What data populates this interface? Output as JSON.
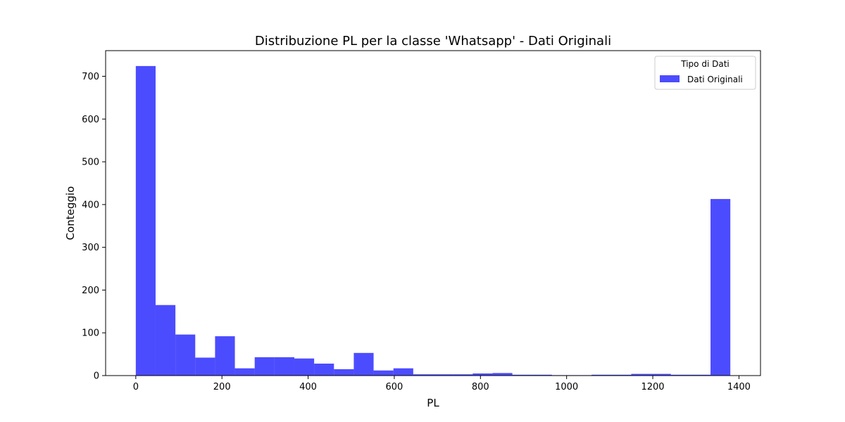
{
  "chart_data": {
    "type": "bar",
    "title": "Distribuzione PL per la classe 'Whatsapp' - Dati Originali",
    "xlabel": "PL",
    "ylabel": "Conteggio",
    "xlim": [
      -70,
      1450
    ],
    "ylim": [
      0,
      760
    ],
    "xticks": [
      0,
      200,
      400,
      600,
      800,
      1000,
      1200,
      1400
    ],
    "yticks": [
      0,
      100,
      200,
      300,
      400,
      500,
      600,
      700
    ],
    "grid": false,
    "bar_color": "#0000ff",
    "bar_opacity": 0.7,
    "legend": {
      "title": "Tipo di Dati",
      "position": "top-right",
      "entries": [
        "Dati Originali"
      ]
    },
    "series": [
      {
        "name": "Dati Originali",
        "bins": [
          {
            "x0": 0,
            "x1": 46,
            "count": 724
          },
          {
            "x0": 46,
            "x1": 92,
            "count": 165
          },
          {
            "x0": 92,
            "x1": 138,
            "count": 96
          },
          {
            "x0": 138,
            "x1": 184,
            "count": 42
          },
          {
            "x0": 184,
            "x1": 230,
            "count": 92
          },
          {
            "x0": 230,
            "x1": 276,
            "count": 17
          },
          {
            "x0": 276,
            "x1": 322,
            "count": 43
          },
          {
            "x0": 322,
            "x1": 368,
            "count": 43
          },
          {
            "x0": 368,
            "x1": 414,
            "count": 40
          },
          {
            "x0": 414,
            "x1": 460,
            "count": 28
          },
          {
            "x0": 460,
            "x1": 506,
            "count": 15
          },
          {
            "x0": 506,
            "x1": 552,
            "count": 53
          },
          {
            "x0": 552,
            "x1": 598,
            "count": 12
          },
          {
            "x0": 598,
            "x1": 644,
            "count": 17
          },
          {
            "x0": 644,
            "x1": 690,
            "count": 3
          },
          {
            "x0": 690,
            "x1": 736,
            "count": 3
          },
          {
            "x0": 736,
            "x1": 782,
            "count": 3
          },
          {
            "x0": 782,
            "x1": 828,
            "count": 5
          },
          {
            "x0": 828,
            "x1": 874,
            "count": 6
          },
          {
            "x0": 874,
            "x1": 920,
            "count": 2
          },
          {
            "x0": 920,
            "x1": 966,
            "count": 2
          },
          {
            "x0": 966,
            "x1": 1012,
            "count": 1
          },
          {
            "x0": 1012,
            "x1": 1058,
            "count": 1
          },
          {
            "x0": 1058,
            "x1": 1104,
            "count": 2
          },
          {
            "x0": 1104,
            "x1": 1150,
            "count": 2
          },
          {
            "x0": 1150,
            "x1": 1196,
            "count": 4
          },
          {
            "x0": 1196,
            "x1": 1242,
            "count": 4
          },
          {
            "x0": 1242,
            "x1": 1288,
            "count": 2
          },
          {
            "x0": 1288,
            "x1": 1334,
            "count": 2
          },
          {
            "x0": 1334,
            "x1": 1380,
            "count": 413
          }
        ]
      }
    ]
  }
}
